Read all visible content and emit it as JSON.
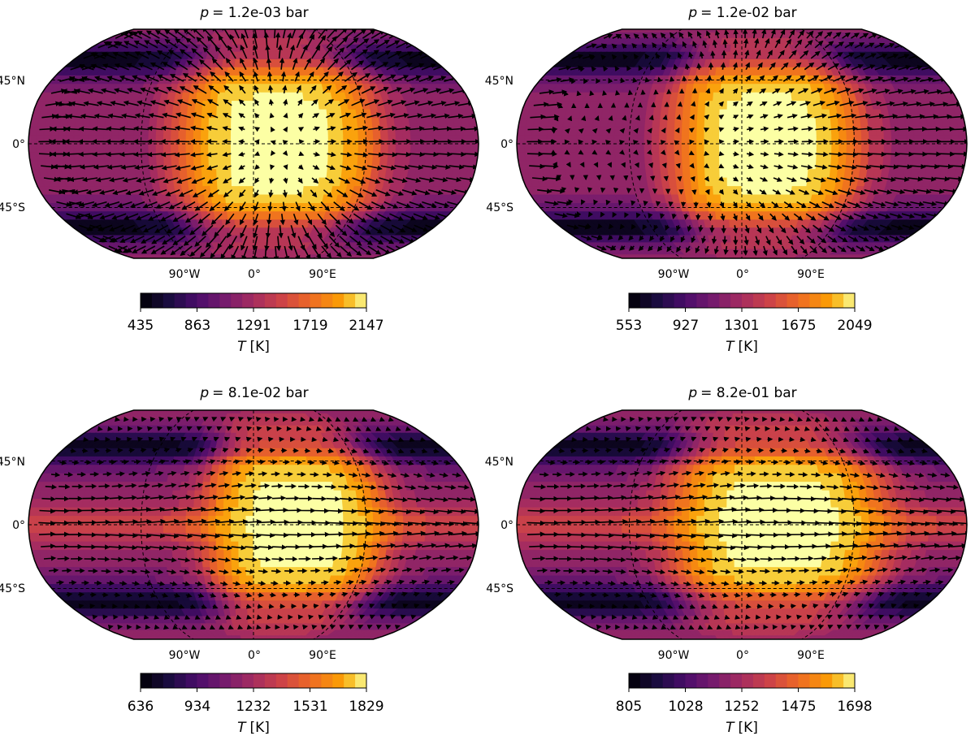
{
  "figure_type": "four-panel temperature maps with wind vectors",
  "chart_data": [
    {
      "type": "heatmap",
      "projection": "robinson",
      "title_prefix": "p",
      "title_value": "= 1.2e-03 bar",
      "lat_labels": [
        "45°N",
        "0°",
        "45°S"
      ],
      "lon_labels": [
        "90°W",
        "0°",
        "90°E"
      ],
      "colorbar": {
        "label_symbol": "T",
        "label_unit": "[K]",
        "ticks": [
          "435",
          "863",
          "1291",
          "1719",
          "2147"
        ],
        "vmin": 435,
        "vmax": 2147
      },
      "hotspot_lon_deg": 20,
      "hot_halfwidth_lon_deg": 85,
      "cold_bands_lat_deg": [
        60,
        -60
      ],
      "wind_pattern": "day-to-night"
    },
    {
      "type": "heatmap",
      "projection": "robinson",
      "title_prefix": "p",
      "title_value": "= 1.2e-02 bar",
      "lat_labels": [
        "45°N",
        "0°",
        "45°S"
      ],
      "lon_labels": [
        "90°W",
        "0°",
        "90°E"
      ],
      "colorbar": {
        "label_symbol": "T",
        "label_unit": "[K]",
        "ticks": [
          "553",
          "927",
          "1301",
          "1675",
          "2049"
        ],
        "vmin": 553,
        "vmax": 2049
      },
      "hotspot_lon_deg": 20,
      "hot_halfwidth_lon_deg": 80,
      "cold_bands_lat_deg": [
        60,
        -60
      ],
      "wind_pattern": "mixed"
    },
    {
      "type": "heatmap",
      "projection": "robinson",
      "title_prefix": "p",
      "title_value": "= 8.1e-02 bar",
      "lat_labels": [
        "45°N",
        "0°",
        "45°S"
      ],
      "lon_labels": [
        "90°W",
        "0°",
        "90°E"
      ],
      "colorbar": {
        "label_symbol": "T",
        "label_unit": "[K]",
        "ticks": [
          "636",
          "934",
          "1232",
          "1531",
          "1829"
        ],
        "vmin": 636,
        "vmax": 1829
      },
      "hotspot_lon_deg": 35,
      "hot_halfwidth_lon_deg": 75,
      "cold_bands_lat_deg": [
        55,
        -55
      ],
      "wind_pattern": "equatorial-jet"
    },
    {
      "type": "heatmap",
      "projection": "robinson",
      "title_prefix": "p",
      "title_value": "= 8.2e-01 bar",
      "lat_labels": [
        "45°N",
        "0°",
        "45°S"
      ],
      "lon_labels": [
        "90°W",
        "0°",
        "90°E"
      ],
      "colorbar": {
        "label_symbol": "T",
        "label_unit": "[K]",
        "ticks": [
          "805",
          "1028",
          "1252",
          "1475",
          "1698"
        ],
        "vmin": 805,
        "vmax": 1698
      },
      "hotspot_lon_deg": 30,
      "hot_halfwidth_lon_deg": 90,
      "cold_bands_lat_deg": [
        55,
        -55
      ],
      "wind_pattern": "superrotation"
    }
  ]
}
